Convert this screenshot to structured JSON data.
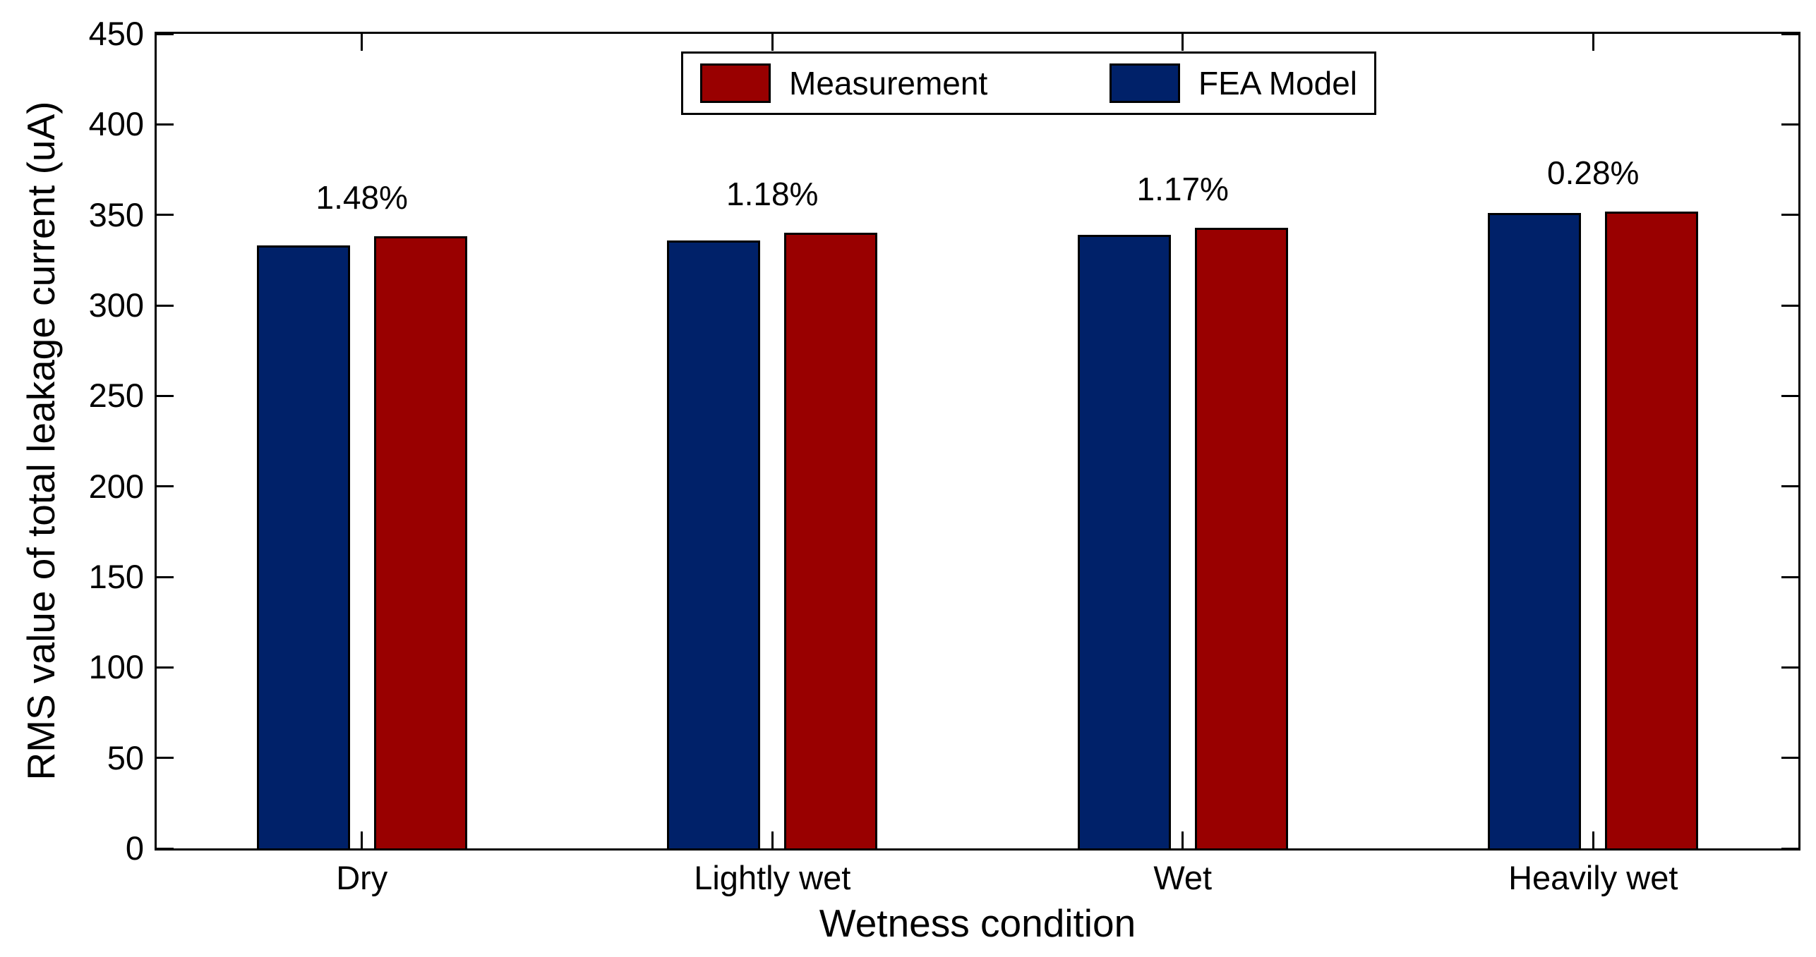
{
  "chart_data": {
    "type": "bar",
    "title": "",
    "xlabel": "Wetness condition",
    "ylabel": "RMS value of total leakage current (uA)",
    "categories": [
      "Dry",
      "Lightly wet",
      "Wet",
      "Heavily wet"
    ],
    "series": [
      {
        "name": "Measurement",
        "color": "#990000",
        "values": [
          338,
          340,
          343,
          352
        ]
      },
      {
        "name": "FEA Model",
        "color": "#002169",
        "values": [
          333,
          336,
          339,
          351
        ]
      }
    ],
    "bar_draw_order": [
      "FEA Model",
      "Measurement"
    ],
    "annotations": [
      "1.48%",
      "1.18%",
      "1.17%",
      "0.28%"
    ],
    "ylim": [
      0,
      450
    ],
    "yticks": [
      0,
      50,
      100,
      150,
      200,
      250,
      300,
      350,
      400,
      450
    ],
    "grid": false,
    "legend_position": "top-center-inside",
    "axis_color": "#000000",
    "background": "#ffffff"
  }
}
